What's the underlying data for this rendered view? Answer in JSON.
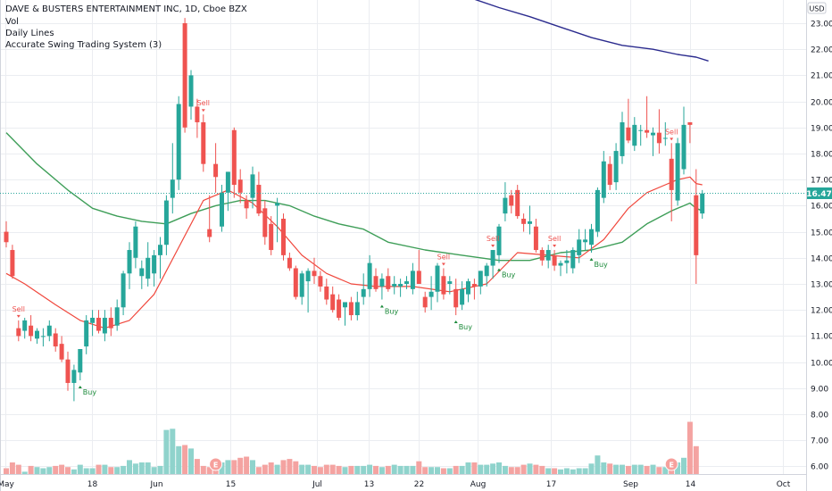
{
  "legend": {
    "title": "DAVE & BUSTERS ENTERTAINMENT INC, 1D, Cboe BZX",
    "line2": "Vol",
    "line3": "Daily Lines",
    "line4": "Accurate Swing Trading System (3)"
  },
  "currency": "USD",
  "last_price_label": "16.47",
  "colors": {
    "up": "#26a69a",
    "down": "#ef5350",
    "vol_up": "#8fd3cc",
    "vol_down": "#f4a3a1",
    "ma_fast": "#f0473c",
    "ma_slow": "#3e9e58",
    "ma_long": "#2b2b8e",
    "grid": "#ebedf1",
    "last_price_bg": "#26a69a"
  },
  "chart_data": {
    "type": "candlestick",
    "x_labels": [
      "May",
      "18",
      "Jun",
      "15",
      "Jul",
      "13",
      "22",
      "Aug",
      "17",
      "Sep",
      "14",
      "Oct"
    ],
    "y_ticks": [
      "6.00",
      "7.00",
      "8.00",
      "9.00",
      "10.00",
      "11.00",
      "12.00",
      "13.00",
      "14.00",
      "15.00",
      "16.00",
      "17.00",
      "18.00",
      "19.00",
      "20.00",
      "21.00",
      "22.00",
      "23.00"
    ],
    "ylim": [
      5.8,
      23.6
    ],
    "candles": [
      {
        "o": 15.0,
        "h": 15.4,
        "l": 14.4,
        "c": 14.6
      },
      {
        "o": 14.3,
        "h": 14.5,
        "l": 13.2,
        "c": 13.3
      },
      {
        "o": 11.3,
        "h": 11.6,
        "l": 10.8,
        "c": 11.0
      },
      {
        "o": 11.2,
        "h": 11.7,
        "l": 10.9,
        "c": 11.6
      },
      {
        "o": 11.4,
        "h": 11.8,
        "l": 10.8,
        "c": 11.0
      },
      {
        "o": 10.9,
        "h": 11.3,
        "l": 10.7,
        "c": 11.2
      },
      {
        "o": 11.0,
        "h": 11.3,
        "l": 10.6,
        "c": 11.0
      },
      {
        "o": 11.0,
        "h": 11.6,
        "l": 10.8,
        "c": 11.4
      },
      {
        "o": 11.1,
        "h": 11.3,
        "l": 10.4,
        "c": 10.6
      },
      {
        "o": 10.7,
        "h": 11.0,
        "l": 10.0,
        "c": 10.1
      },
      {
        "o": 10.1,
        "h": 10.4,
        "l": 8.9,
        "c": 9.2
      },
      {
        "o": 9.2,
        "h": 9.9,
        "l": 8.5,
        "c": 9.7
      },
      {
        "o": 9.6,
        "h": 10.5,
        "l": 9.3,
        "c": 10.5
      },
      {
        "o": 10.6,
        "h": 11.8,
        "l": 10.3,
        "c": 11.6
      },
      {
        "o": 11.5,
        "h": 12.0,
        "l": 11.0,
        "c": 11.7
      },
      {
        "o": 11.7,
        "h": 12.0,
        "l": 11.1,
        "c": 11.2
      },
      {
        "o": 11.1,
        "h": 12.0,
        "l": 10.8,
        "c": 11.7
      },
      {
        "o": 11.7,
        "h": 12.1,
        "l": 11.0,
        "c": 11.3
      },
      {
        "o": 11.4,
        "h": 12.4,
        "l": 11.2,
        "c": 12.1
      },
      {
        "o": 12.1,
        "h": 13.5,
        "l": 11.8,
        "c": 13.4
      },
      {
        "o": 13.4,
        "h": 14.6,
        "l": 12.8,
        "c": 14.3
      },
      {
        "o": 14.0,
        "h": 15.4,
        "l": 13.6,
        "c": 15.2
      },
      {
        "o": 13.3,
        "h": 13.9,
        "l": 12.8,
        "c": 13.6
      },
      {
        "o": 13.2,
        "h": 14.6,
        "l": 12.9,
        "c": 14.0
      },
      {
        "o": 13.4,
        "h": 14.3,
        "l": 12.9,
        "c": 14.1
      },
      {
        "o": 14.1,
        "h": 14.8,
        "l": 13.2,
        "c": 14.5
      },
      {
        "o": 14.5,
        "h": 16.4,
        "l": 14.1,
        "c": 16.2
      },
      {
        "o": 16.3,
        "h": 18.4,
        "l": 15.7,
        "c": 17.0
      },
      {
        "o": 17.0,
        "h": 20.2,
        "l": 16.6,
        "c": 19.9
      },
      {
        "o": 23.0,
        "h": 23.2,
        "l": 18.8,
        "c": 19.0
      },
      {
        "o": 19.8,
        "h": 21.2,
        "l": 19.3,
        "c": 21.0
      },
      {
        "o": 19.8,
        "h": 20.1,
        "l": 18.6,
        "c": 19.2
      },
      {
        "o": 19.2,
        "h": 19.5,
        "l": 17.3,
        "c": 17.6
      },
      {
        "o": 15.1,
        "h": 16.4,
        "l": 14.6,
        "c": 14.8
      },
      {
        "o": 17.6,
        "h": 18.4,
        "l": 16.5,
        "c": 17.1
      },
      {
        "o": 15.2,
        "h": 16.8,
        "l": 15.0,
        "c": 16.5
      },
      {
        "o": 16.5,
        "h": 17.3,
        "l": 15.8,
        "c": 17.3
      },
      {
        "o": 18.9,
        "h": 19.0,
        "l": 16.3,
        "c": 16.8
      },
      {
        "o": 17.0,
        "h": 17.4,
        "l": 16.1,
        "c": 16.5
      },
      {
        "o": 16.2,
        "h": 16.4,
        "l": 15.5,
        "c": 15.9
      },
      {
        "o": 16.3,
        "h": 17.5,
        "l": 15.9,
        "c": 17.2
      },
      {
        "o": 16.8,
        "h": 17.3,
        "l": 15.6,
        "c": 15.7
      },
      {
        "o": 15.9,
        "h": 16.2,
        "l": 14.5,
        "c": 14.8
      },
      {
        "o": 15.3,
        "h": 15.6,
        "l": 14.1,
        "c": 14.3
      },
      {
        "o": 16.0,
        "h": 16.3,
        "l": 14.6,
        "c": 16.1
      },
      {
        "o": 15.5,
        "h": 15.7,
        "l": 13.9,
        "c": 14.1
      },
      {
        "o": 14.0,
        "h": 14.2,
        "l": 13.5,
        "c": 13.6
      },
      {
        "o": 13.6,
        "h": 13.7,
        "l": 12.4,
        "c": 12.5
      },
      {
        "o": 12.5,
        "h": 13.5,
        "l": 12.2,
        "c": 13.4
      },
      {
        "o": 13.1,
        "h": 13.6,
        "l": 11.9,
        "c": 13.5
      },
      {
        "o": 13.5,
        "h": 14.0,
        "l": 13.0,
        "c": 13.3
      },
      {
        "o": 13.3,
        "h": 13.5,
        "l": 12.7,
        "c": 12.9
      },
      {
        "o": 12.9,
        "h": 13.2,
        "l": 12.2,
        "c": 12.4
      },
      {
        "o": 12.6,
        "h": 12.9,
        "l": 11.9,
        "c": 12.0
      },
      {
        "o": 12.4,
        "h": 12.6,
        "l": 11.6,
        "c": 11.7
      },
      {
        "o": 12.1,
        "h": 12.3,
        "l": 11.4,
        "c": 12.3
      },
      {
        "o": 12.3,
        "h": 12.5,
        "l": 11.6,
        "c": 11.8
      },
      {
        "o": 11.8,
        "h": 12.7,
        "l": 11.6,
        "c": 12.3
      },
      {
        "o": 12.5,
        "h": 13.4,
        "l": 12.2,
        "c": 12.8
      },
      {
        "o": 12.8,
        "h": 14.1,
        "l": 12.5,
        "c": 13.8
      },
      {
        "o": 13.3,
        "h": 13.6,
        "l": 12.7,
        "c": 12.8
      },
      {
        "o": 12.9,
        "h": 13.4,
        "l": 12.4,
        "c": 13.2
      },
      {
        "o": 13.3,
        "h": 13.6,
        "l": 12.7,
        "c": 12.8
      },
      {
        "o": 12.9,
        "h": 13.3,
        "l": 12.6,
        "c": 13.0
      },
      {
        "o": 12.9,
        "h": 13.2,
        "l": 12.5,
        "c": 13.0
      },
      {
        "o": 13.0,
        "h": 13.3,
        "l": 12.8,
        "c": 13.1
      },
      {
        "o": 12.8,
        "h": 13.8,
        "l": 12.6,
        "c": 13.5
      },
      {
        "o": 13.5,
        "h": 14.3,
        "l": 13.0,
        "c": 13.0
      },
      {
        "o": 12.5,
        "h": 12.7,
        "l": 11.9,
        "c": 12.1
      },
      {
        "o": 12.5,
        "h": 13.3,
        "l": 12.0,
        "c": 12.7
      },
      {
        "o": 12.7,
        "h": 13.8,
        "l": 12.3,
        "c": 13.7
      },
      {
        "o": 13.3,
        "h": 13.6,
        "l": 12.4,
        "c": 12.6
      },
      {
        "o": 13.0,
        "h": 13.3,
        "l": 12.6,
        "c": 13.1
      },
      {
        "o": 12.8,
        "h": 13.2,
        "l": 11.8,
        "c": 12.1
      },
      {
        "o": 12.2,
        "h": 13.1,
        "l": 12.0,
        "c": 12.8
      },
      {
        "o": 12.6,
        "h": 13.2,
        "l": 12.3,
        "c": 13.1
      },
      {
        "o": 13.0,
        "h": 13.2,
        "l": 12.4,
        "c": 12.9
      },
      {
        "o": 12.9,
        "h": 13.5,
        "l": 12.6,
        "c": 13.5
      },
      {
        "o": 13.3,
        "h": 13.8,
        "l": 12.9,
        "c": 13.7
      },
      {
        "o": 13.7,
        "h": 14.3,
        "l": 13.2,
        "c": 14.3
      },
      {
        "o": 14.1,
        "h": 15.3,
        "l": 13.8,
        "c": 15.2
      },
      {
        "o": 15.7,
        "h": 16.9,
        "l": 15.4,
        "c": 16.3
      },
      {
        "o": 16.4,
        "h": 16.6,
        "l": 15.7,
        "c": 16.0
      },
      {
        "o": 16.6,
        "h": 16.8,
        "l": 15.5,
        "c": 15.6
      },
      {
        "o": 15.5,
        "h": 15.7,
        "l": 15.0,
        "c": 15.3
      },
      {
        "o": 15.3,
        "h": 16.0,
        "l": 14.9,
        "c": 15.4
      },
      {
        "o": 15.2,
        "h": 15.5,
        "l": 14.2,
        "c": 14.3
      },
      {
        "o": 14.3,
        "h": 14.4,
        "l": 13.7,
        "c": 13.9
      },
      {
        "o": 13.9,
        "h": 14.5,
        "l": 13.6,
        "c": 14.3
      },
      {
        "o": 14.1,
        "h": 14.3,
        "l": 13.5,
        "c": 13.7
      },
      {
        "o": 13.7,
        "h": 13.9,
        "l": 13.3,
        "c": 13.8
      },
      {
        "o": 13.8,
        "h": 14.3,
        "l": 13.4,
        "c": 13.9
      },
      {
        "o": 13.6,
        "h": 14.4,
        "l": 13.4,
        "c": 14.3
      },
      {
        "o": 14.1,
        "h": 15.1,
        "l": 13.8,
        "c": 14.7
      },
      {
        "o": 14.6,
        "h": 15.1,
        "l": 14.3,
        "c": 14.7
      },
      {
        "o": 14.5,
        "h": 15.3,
        "l": 14.2,
        "c": 15.1
      },
      {
        "o": 15.0,
        "h": 16.7,
        "l": 14.8,
        "c": 16.6
      },
      {
        "o": 16.3,
        "h": 18.1,
        "l": 16.1,
        "c": 17.7
      },
      {
        "o": 17.6,
        "h": 17.9,
        "l": 16.6,
        "c": 16.8
      },
      {
        "o": 16.9,
        "h": 18.4,
        "l": 16.6,
        "c": 18.1
      },
      {
        "o": 17.9,
        "h": 19.6,
        "l": 17.6,
        "c": 19.2
      },
      {
        "o": 19.0,
        "h": 20.1,
        "l": 18.4,
        "c": 18.5
      },
      {
        "o": 18.3,
        "h": 19.4,
        "l": 18.1,
        "c": 19.1
      },
      {
        "o": 18.9,
        "h": 19.1,
        "l": 18.3,
        "c": 18.9
      },
      {
        "o": 18.9,
        "h": 20.2,
        "l": 18.6,
        "c": 18.8
      },
      {
        "o": 18.7,
        "h": 19.0,
        "l": 17.9,
        "c": 18.8
      },
      {
        "o": 18.8,
        "h": 19.7,
        "l": 18.0,
        "c": 18.4
      },
      {
        "o": 18.6,
        "h": 19.2,
        "l": 18.3,
        "c": 18.6
      },
      {
        "o": 17.8,
        "h": 18.4,
        "l": 15.4,
        "c": 16.6
      },
      {
        "o": 16.2,
        "h": 18.6,
        "l": 16.0,
        "c": 18.4
      },
      {
        "o": 17.4,
        "h": 19.8,
        "l": 17.2,
        "c": 19.1
      },
      {
        "o": 19.2,
        "h": 19.2,
        "l": 18.4,
        "c": 19.1
      },
      {
        "o": 16.4,
        "h": 17.4,
        "l": 13.0,
        "c": 14.1
      },
      {
        "o": 15.7,
        "h": 16.6,
        "l": 15.5,
        "c": 16.47
      }
    ],
    "volume_axis_max": 11.0,
    "volumes": [
      0.5,
      1.0,
      0.8,
      0.2,
      0.7,
      0.6,
      0.5,
      0.6,
      0.7,
      0.8,
      0.6,
      0.4,
      0.8,
      0.5,
      0.5,
      0.8,
      0.8,
      0.6,
      0.6,
      0.7,
      1.2,
      0.9,
      1.0,
      1.0,
      0.6,
      0.7,
      3.8,
      3.9,
      2.4,
      2.5,
      2.2,
      1.3,
      0.7,
      0.6,
      1.2,
      1.0,
      1.2,
      1.2,
      1.4,
      1.5,
      1.2,
      0.6,
      0.8,
      1.0,
      0.8,
      1.2,
      1.3,
      1.1,
      0.8,
      0.8,
      0.7,
      0.6,
      0.8,
      0.8,
      0.7,
      0.6,
      0.7,
      0.7,
      0.7,
      0.8,
      0.7,
      0.6,
      0.7,
      0.8,
      0.7,
      0.7,
      0.7,
      1.1,
      0.6,
      0.6,
      0.6,
      0.5,
      0.5,
      0.7,
      0.7,
      1.0,
      1.0,
      0.8,
      0.8,
      0.9,
      1.0,
      0.7,
      0.6,
      0.6,
      0.8,
      0.9,
      0.8,
      0.7,
      0.5,
      0.5,
      0.4,
      0.5,
      0.4,
      0.5,
      0.5,
      0.9,
      1.6,
      1.0,
      0.9,
      0.8,
      0.8,
      0.7,
      0.8,
      0.8,
      0.7,
      0.8,
      0.6,
      0.6,
      0.8,
      1.0,
      1.4,
      4.5,
      2.4
    ],
    "ma_fast": [
      [
        0,
        13.4
      ],
      [
        3,
        13.0
      ],
      [
        8,
        12.2
      ],
      [
        12,
        11.6
      ],
      [
        16,
        11.3
      ],
      [
        20,
        11.6
      ],
      [
        24,
        12.6
      ],
      [
        28,
        14.4
      ],
      [
        32,
        16.2
      ],
      [
        36,
        16.6
      ],
      [
        40,
        16.1
      ],
      [
        44,
        15.2
      ],
      [
        48,
        14.1
      ],
      [
        52,
        13.4
      ],
      [
        56,
        13.0
      ],
      [
        60,
        12.9
      ],
      [
        66,
        12.9
      ],
      [
        72,
        12.7
      ],
      [
        78,
        13.0
      ],
      [
        83,
        14.2
      ],
      [
        88,
        14.1
      ],
      [
        93,
        14.0
      ],
      [
        97,
        14.7
      ],
      [
        101,
        15.9
      ],
      [
        104,
        16.5
      ],
      [
        107,
        16.8
      ],
      [
        109,
        17.0
      ],
      [
        111,
        17.1
      ],
      [
        112,
        16.85
      ],
      [
        113,
        16.8
      ]
    ],
    "ma_slow": [
      [
        0,
        18.8
      ],
      [
        5,
        17.6
      ],
      [
        10,
        16.6
      ],
      [
        14,
        15.9
      ],
      [
        18,
        15.6
      ],
      [
        22,
        15.4
      ],
      [
        26,
        15.3
      ],
      [
        30,
        15.7
      ],
      [
        34,
        16.0
      ],
      [
        38,
        16.2
      ],
      [
        42,
        16.2
      ],
      [
        46,
        16.0
      ],
      [
        50,
        15.6
      ],
      [
        54,
        15.3
      ],
      [
        58,
        15.1
      ],
      [
        62,
        14.6
      ],
      [
        68,
        14.3
      ],
      [
        74,
        14.1
      ],
      [
        80,
        13.9
      ],
      [
        85,
        13.9
      ],
      [
        90,
        14.2
      ],
      [
        95,
        14.3
      ],
      [
        100,
        14.6
      ],
      [
        104,
        15.3
      ],
      [
        108,
        15.8
      ],
      [
        111,
        16.1
      ],
      [
        112,
        15.9
      ],
      [
        113,
        15.8
      ]
    ],
    "ma_long": [
      [
        75,
        24.0
      ],
      [
        80,
        23.6
      ],
      [
        85,
        23.25
      ],
      [
        90,
        22.85
      ],
      [
        95,
        22.45
      ],
      [
        100,
        22.15
      ],
      [
        105,
        22.0
      ],
      [
        109,
        21.8
      ],
      [
        112,
        21.7
      ],
      [
        114,
        21.55
      ]
    ],
    "signals": [
      {
        "i": 2,
        "label": "Sell",
        "type": "sell"
      },
      {
        "i": 12,
        "label": "Buy",
        "type": "buy"
      },
      {
        "i": 32,
        "label": "Sell",
        "type": "sell"
      },
      {
        "i": 61,
        "label": "Buy",
        "type": "buy"
      },
      {
        "i": 71,
        "label": "Sell",
        "type": "sell"
      },
      {
        "i": 73,
        "label": "Buy",
        "type": "buy"
      },
      {
        "i": 79,
        "label": "Sell",
        "type": "sell"
      },
      {
        "i": 80,
        "label": "Buy",
        "type": "buy"
      },
      {
        "i": 89,
        "label": "Sell",
        "type": "sell"
      },
      {
        "i": 95,
        "label": "Buy",
        "type": "buy"
      },
      {
        "i": 108,
        "label": "Sell",
        "type": "sell"
      }
    ],
    "earnings_markers": [
      {
        "i": 34,
        "label": "E"
      },
      {
        "i": 108,
        "label": "E"
      }
    ]
  }
}
